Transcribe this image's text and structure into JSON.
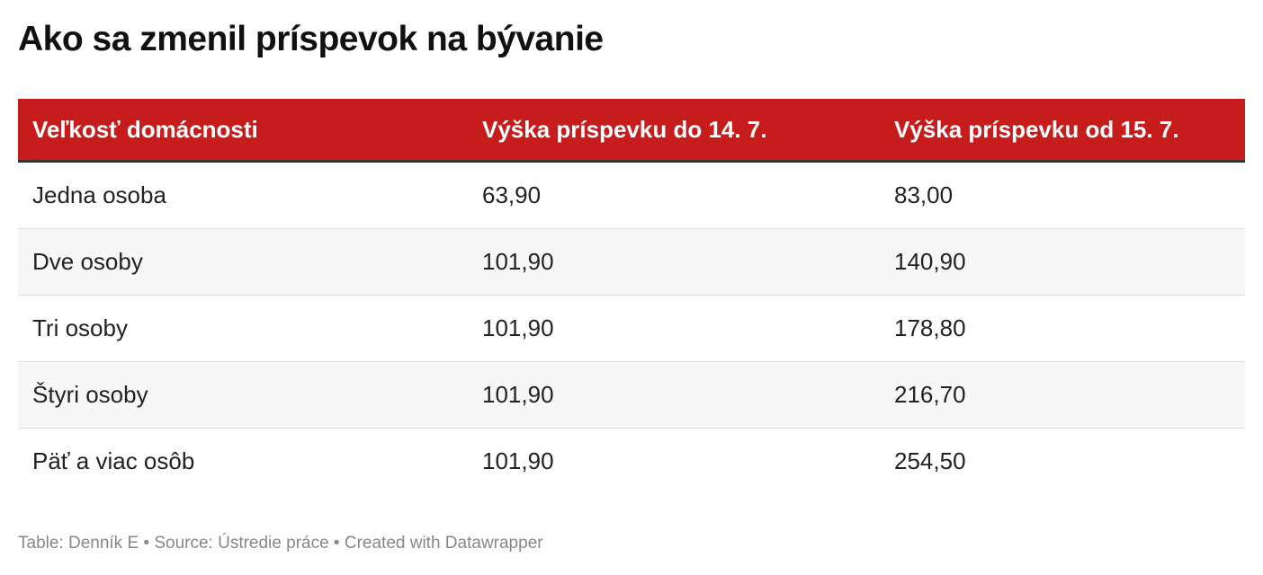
{
  "title": "Ako sa zmenil príspevok na bývanie",
  "table": {
    "header": [
      "Veľkosť domácnosti",
      "Výška príspevku do 14. 7.",
      "Výška príspevku od 15. 7."
    ],
    "rows": [
      [
        "Jedna osoba",
        "63,90",
        "83,00"
      ],
      [
        "Dve osoby",
        "101,90",
        "140,90"
      ],
      [
        "Tri osoby",
        "101,90",
        "178,80"
      ],
      [
        "Štyri osoby",
        "101,90",
        "216,70"
      ],
      [
        "Päť a viac osôb",
        "101,90",
        "254,50"
      ]
    ]
  },
  "footer": "Table: Denník E • Source: Ústredie práce • Created with Datawrapper"
}
